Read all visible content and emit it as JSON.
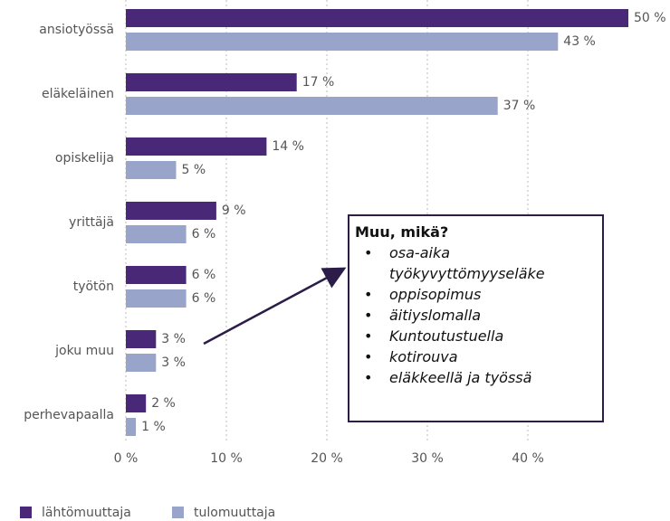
{
  "chart_data": {
    "type": "bar",
    "orientation": "horizontal",
    "categories": [
      "ansiotyössä",
      "eläkeläinen",
      "opiskelija",
      "yrittäjä",
      "työtön",
      "joku muu",
      "perhevapaalla"
    ],
    "series": [
      {
        "name": "lähtömuuttaja",
        "color": "#4a2878",
        "values": [
          50,
          17,
          14,
          9,
          6,
          3,
          2
        ],
        "value_labels": [
          "50 %",
          "17 %",
          "14 %",
          "9 %",
          "6 %",
          "3 %",
          "2 %"
        ]
      },
      {
        "name": "tulomuuttaja",
        "color": "#98a4c9",
        "values": [
          43,
          37,
          5,
          6,
          6,
          3,
          1
        ],
        "value_labels": [
          "43 %",
          "37 %",
          "5 %",
          "6 %",
          "6 %",
          "3 %",
          "1 %"
        ]
      }
    ],
    "xlim": [
      0,
      50
    ],
    "xticks": [
      {
        "value": 0,
        "label": "0 %"
      },
      {
        "value": 10,
        "label": "10 %"
      },
      {
        "value": 20,
        "label": "20 %"
      },
      {
        "value": 30,
        "label": "30 %"
      },
      {
        "value": 40,
        "label": "40 %"
      }
    ],
    "grid": true,
    "legend": "bottom-left",
    "annotation": {
      "title": "Muu, mikä?",
      "items": [
        "osa-aika työkyvyttömyyseläke",
        "oppisopimus",
        "äitiyslomalla",
        "Kuntoutustuella",
        "kotirouva",
        "eläkkeellä ja työssä"
      ]
    }
  }
}
